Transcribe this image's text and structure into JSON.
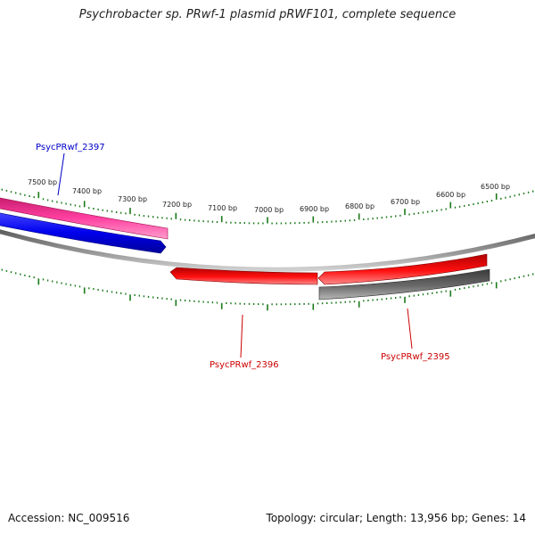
{
  "title": "Psychrobacter sp. PRwf-1 plasmid pRWF101, complete sequence",
  "footer": {
    "accession": "Accession: NC_009516",
    "stats": "Topology: circular; Length: 13,956 bp; Genes: 14"
  },
  "scale_labels": [
    "7500 bp",
    "7400 bp",
    "7300 bp",
    "7200 bp",
    "7100 bp",
    "7000 bp",
    "6900 bp",
    "6800 bp",
    "6700 bp",
    "6600 bp",
    "6500 bp"
  ],
  "genes": [
    {
      "name": "PsycPRwf_2397",
      "color": "#0000c8"
    },
    {
      "name": "PsycPRwf_2396",
      "color": "#cc0000"
    },
    {
      "name": "PsycPRwf_2395",
      "color": "#cc0000"
    }
  ],
  "colors": {
    "tick": "#1a7a1a",
    "backbone": "#888888",
    "pink": "#e6348c",
    "blue": "#0000e0",
    "red": "#ee0000",
    "gray": "#555555"
  }
}
